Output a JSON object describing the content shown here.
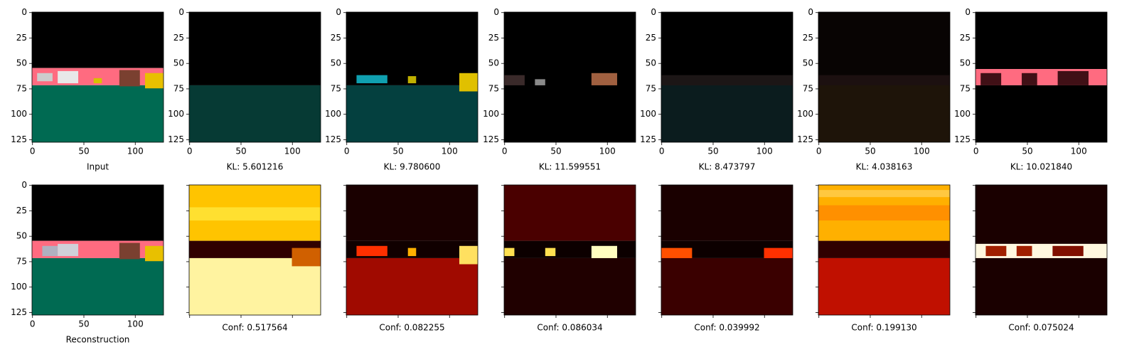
{
  "axis": {
    "yticks": [
      0,
      25,
      50,
      75,
      100,
      125
    ],
    "xticks": [
      0,
      50,
      100
    ]
  },
  "top_row": [
    {
      "caption": "Input"
    },
    {
      "caption": "KL: 5.601216"
    },
    {
      "caption": "KL: 9.780600"
    },
    {
      "caption": "KL: 11.599551"
    },
    {
      "caption": "KL: 8.473797"
    },
    {
      "caption": "KL: 4.038163"
    },
    {
      "caption": "KL: 10.021840"
    }
  ],
  "bottom_row": [
    {
      "caption": "Reconstruction"
    },
    {
      "caption": "Conf: 0.517564"
    },
    {
      "caption": "Conf: 0.082255"
    },
    {
      "caption": "Conf: 0.086034"
    },
    {
      "caption": "Conf: 0.039992"
    },
    {
      "caption": "Conf: 0.199130"
    },
    {
      "caption": "Conf: 0.075024"
    }
  ]
}
